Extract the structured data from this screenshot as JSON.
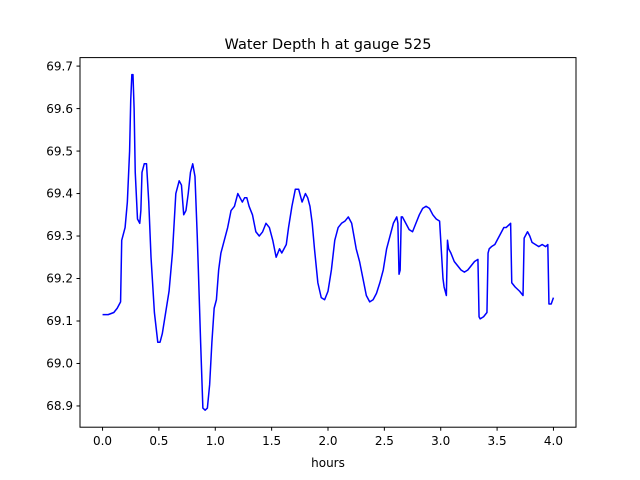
{
  "chart_data": {
    "type": "line",
    "title": "Water Depth h at gauge 525",
    "xlabel": "hours",
    "ylabel": "",
    "xlim": [
      -0.2,
      4.2
    ],
    "ylim": [
      68.85,
      69.72
    ],
    "grid": false,
    "x_ticks": [
      {
        "value": 0.0,
        "label": "0.0"
      },
      {
        "value": 0.5,
        "label": "0.5"
      },
      {
        "value": 1.0,
        "label": "1.0"
      },
      {
        "value": 1.5,
        "label": "1.5"
      },
      {
        "value": 2.0,
        "label": "2.0"
      },
      {
        "value": 2.5,
        "label": "2.5"
      },
      {
        "value": 3.0,
        "label": "3.0"
      },
      {
        "value": 3.5,
        "label": "3.5"
      },
      {
        "value": 4.0,
        "label": "4.0"
      }
    ],
    "y_ticks": [
      {
        "value": 68.9,
        "label": "68.9"
      },
      {
        "value": 69.0,
        "label": "69.0"
      },
      {
        "value": 69.1,
        "label": "69.1"
      },
      {
        "value": 69.2,
        "label": "69.2"
      },
      {
        "value": 69.3,
        "label": "69.3"
      },
      {
        "value": 69.4,
        "label": "69.4"
      },
      {
        "value": 69.5,
        "label": "69.5"
      },
      {
        "value": 69.6,
        "label": "69.6"
      },
      {
        "value": 69.7,
        "label": "69.7"
      }
    ],
    "series": [
      {
        "color": "#0000ff",
        "x": [
          0.0,
          0.05,
          0.1,
          0.13,
          0.16,
          0.17,
          0.18,
          0.2,
          0.22,
          0.24,
          0.25,
          0.26,
          0.27,
          0.28,
          0.29,
          0.31,
          0.33,
          0.34,
          0.35,
          0.37,
          0.39,
          0.41,
          0.43,
          0.46,
          0.49,
          0.51,
          0.53,
          0.56,
          0.59,
          0.62,
          0.65,
          0.68,
          0.7,
          0.72,
          0.74,
          0.76,
          0.78,
          0.8,
          0.82,
          0.84,
          0.85,
          0.87,
          0.89,
          0.91,
          0.93,
          0.95,
          0.97,
          0.99,
          1.01,
          1.03,
          1.05,
          1.08,
          1.11,
          1.14,
          1.17,
          1.2,
          1.22,
          1.24,
          1.26,
          1.28,
          1.3,
          1.33,
          1.36,
          1.39,
          1.42,
          1.45,
          1.48,
          1.51,
          1.54,
          1.57,
          1.59,
          1.61,
          1.63,
          1.65,
          1.68,
          1.71,
          1.74,
          1.77,
          1.8,
          1.82,
          1.84,
          1.86,
          1.88,
          1.91,
          1.94,
          1.97,
          2.0,
          2.03,
          2.06,
          2.09,
          2.12,
          2.15,
          2.18,
          2.21,
          2.23,
          2.25,
          2.28,
          2.31,
          2.34,
          2.37,
          2.4,
          2.43,
          2.46,
          2.49,
          2.52,
          2.55,
          2.58,
          2.61,
          2.62,
          2.63,
          2.64,
          2.65,
          2.66,
          2.69,
          2.72,
          2.75,
          2.78,
          2.81,
          2.84,
          2.87,
          2.9,
          2.93,
          2.96,
          2.99,
          3.02,
          3.03,
          3.05,
          3.06,
          3.07,
          3.09,
          3.12,
          3.15,
          3.18,
          3.21,
          3.24,
          3.27,
          3.3,
          3.33,
          3.34,
          3.35,
          3.38,
          3.41,
          3.42,
          3.43,
          3.45,
          3.48,
          3.5,
          3.52,
          3.54,
          3.56,
          3.58,
          3.6,
          3.62,
          3.63,
          3.66,
          3.7,
          3.73,
          3.74,
          3.75,
          3.77,
          3.79,
          3.81,
          3.84,
          3.87,
          3.9,
          3.93,
          3.95,
          3.96,
          3.98,
          4.0
        ],
        "y": [
          69.115,
          69.115,
          69.12,
          69.13,
          69.145,
          69.29,
          69.3,
          69.32,
          69.38,
          69.5,
          69.62,
          69.68,
          69.68,
          69.6,
          69.45,
          69.34,
          69.33,
          69.36,
          69.45,
          69.47,
          69.47,
          69.38,
          69.25,
          69.12,
          69.05,
          69.05,
          69.07,
          69.12,
          69.17,
          69.26,
          69.4,
          69.43,
          69.42,
          69.35,
          69.36,
          69.4,
          69.45,
          69.47,
          69.44,
          69.3,
          69.22,
          69.05,
          68.895,
          68.89,
          68.895,
          68.95,
          69.05,
          69.13,
          69.15,
          69.22,
          69.26,
          69.29,
          69.32,
          69.36,
          69.37,
          69.4,
          69.39,
          69.38,
          69.39,
          69.39,
          69.37,
          69.35,
          69.31,
          69.3,
          69.31,
          69.33,
          69.32,
          69.29,
          69.25,
          69.27,
          69.26,
          69.27,
          69.28,
          69.32,
          69.37,
          69.41,
          69.41,
          69.38,
          69.4,
          69.39,
          69.37,
          69.33,
          69.27,
          69.19,
          69.155,
          69.15,
          69.17,
          69.22,
          69.29,
          69.32,
          69.33,
          69.335,
          69.345,
          69.33,
          69.3,
          69.27,
          69.24,
          69.2,
          69.16,
          69.145,
          69.15,
          69.165,
          69.19,
          69.22,
          69.27,
          69.3,
          69.33,
          69.345,
          69.33,
          69.21,
          69.22,
          69.345,
          69.345,
          69.33,
          69.315,
          69.31,
          69.33,
          69.35,
          69.365,
          69.37,
          69.365,
          69.35,
          69.34,
          69.335,
          69.2,
          69.18,
          69.16,
          69.29,
          69.27,
          69.26,
          69.24,
          69.23,
          69.22,
          69.215,
          69.22,
          69.23,
          69.24,
          69.245,
          69.11,
          69.105,
          69.11,
          69.12,
          69.26,
          69.27,
          69.275,
          69.28,
          69.29,
          69.3,
          69.31,
          69.32,
          69.32,
          69.325,
          69.33,
          69.19,
          69.18,
          69.17,
          69.16,
          69.295,
          69.3,
          69.31,
          69.3,
          69.285,
          69.28,
          69.275,
          69.28,
          69.275,
          69.28,
          69.14,
          69.14,
          69.155
        ]
      }
    ]
  }
}
